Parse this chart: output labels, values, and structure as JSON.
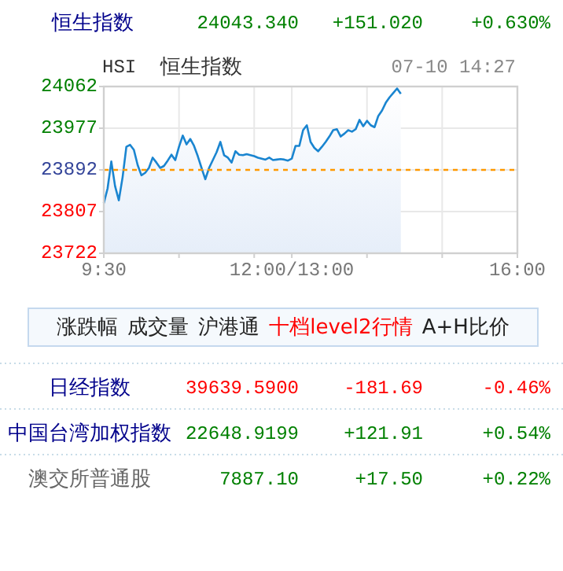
{
  "chart_data": {
    "type": "area",
    "title": "恒生指数",
    "annotations": [
      "24043.340",
      "+151.020",
      "+0.630%",
      "HSI",
      "恒生指数",
      "07-10 14:27",
      "涨跌幅",
      "成交量",
      "沪港通",
      "十档level2行情",
      "A+H比价",
      "日经指数",
      "39639.5900",
      "-181.69",
      "-0.46%",
      "中国台湾加权指数",
      "22648.9199",
      "+121.91",
      "+0.54%",
      "澳交所普通股",
      "7887.10",
      "+17.50",
      "+0.22%"
    ],
    "categories": [
      "9:30",
      null,
      null,
      null,
      null,
      null,
      null,
      null,
      null,
      null,
      null,
      null,
      null,
      null,
      null,
      null,
      null,
      null,
      null,
      null,
      null,
      null,
      null,
      null,
      null,
      null,
      null,
      null,
      null,
      null,
      null,
      null,
      null,
      null,
      null,
      null,
      null,
      null,
      null,
      null,
      null,
      null,
      null,
      null,
      null,
      null,
      null,
      null,
      null,
      null,
      "12:00/13:00",
      null,
      null,
      null,
      null,
      null,
      null,
      null,
      null,
      null,
      null,
      null,
      null,
      null,
      null,
      null,
      null,
      null,
      null,
      null,
      null,
      null,
      null,
      null,
      null,
      null,
      null,
      null,
      null,
      null,
      null,
      null,
      null,
      null,
      null,
      null,
      null,
      null,
      null,
      null,
      null,
      null,
      null,
      null,
      null,
      null,
      null,
      null,
      null,
      null,
      null,
      null,
      null,
      null,
      null,
      null,
      null,
      null,
      null,
      null,
      "16:00"
    ],
    "ylim": [
      23722,
      24062
    ],
    "yticks": [
      23722,
      23807,
      23892,
      23977,
      24062
    ],
    "grid": true,
    "ref_lines": [
      {
        "axis": "y",
        "value": 23892,
        "color": "#ff9900",
        "line_style": "dashed"
      }
    ],
    "series": [
      {
        "color": "#1a85d0",
        "values": [
          23824,
          23854,
          23909,
          23859,
          23830,
          23877,
          23939,
          23943,
          23933,
          23902,
          23881,
          23886,
          23896,
          23917,
          23907,
          23896,
          23900,
          23911,
          23923,
          23912,
          23939,
          23962,
          23944,
          23955,
          23941,
          23920,
          23896,
          23873,
          23896,
          23912,
          23928,
          23949,
          23922,
          23917,
          23907,
          23930,
          23923,
          23922,
          23924,
          23922,
          23920,
          23917,
          23915,
          23913,
          23917,
          23912,
          23913,
          23914,
          23913,
          23911,
          23915,
          23941,
          23941,
          23973,
          23983,
          23949,
          23937,
          23930,
          23939,
          23949,
          23960,
          23973,
          23975,
          23960,
          23966,
          23973,
          23970,
          23975,
          23994,
          23981,
          23992,
          23983,
          23979,
          24002,
          24013,
          24029,
          24040,
          24049,
          24058,
          24047,
          null,
          null,
          null,
          null,
          null,
          null,
          null,
          null,
          null,
          null,
          null,
          null,
          null,
          null,
          null,
          null,
          null,
          null,
          null,
          null,
          null,
          null,
          null,
          null,
          null,
          null,
          null,
          null,
          null,
          null,
          null
        ]
      }
    ]
  }
}
